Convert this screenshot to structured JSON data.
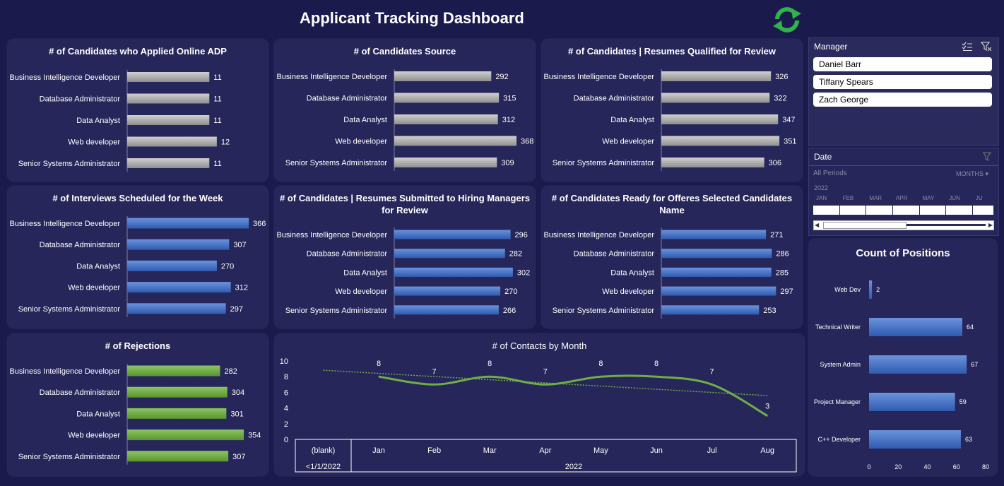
{
  "dashboard": {
    "title": "Applicant Tracking Dashboard"
  },
  "colors": {
    "gray": "#a6a6a6",
    "blue": "#4472c4",
    "green": "#70ad47",
    "panel": "#26265a",
    "bg": "#1b1a4d"
  },
  "manager_slicer": {
    "header": "Manager",
    "items": [
      "Daniel Barr",
      "Tiffany Spears",
      "Zach George"
    ]
  },
  "date_slicer": {
    "header": "Date",
    "period_label": "All Periods",
    "level_label": "MONTHS",
    "year": "2022",
    "months": [
      "JAN",
      "FEB",
      "MAR",
      "APR",
      "MAY",
      "JUN",
      "JU"
    ]
  },
  "chart_data": [
    {
      "id": "applied-online",
      "type": "bar",
      "orientation": "horizontal",
      "color": "gray",
      "title": "# of Candidates who Applied Online ADP",
      "categories": [
        "Business Intelligence Developer",
        "Database Administrator",
        "Data Analyst",
        "Web developer",
        "Senior Systems Administrator"
      ],
      "values": [
        11,
        11,
        11,
        12,
        11
      ],
      "xlim": [
        0,
        14
      ]
    },
    {
      "id": "source",
      "type": "bar",
      "orientation": "horizontal",
      "color": "gray",
      "title": "# of Candidates Source",
      "categories": [
        "Business Intelligence Developer",
        "Database Administrator",
        "Data Analyst",
        "Web developer",
        "Senior Systems Administrator"
      ],
      "values": [
        292,
        315,
        312,
        368,
        309
      ],
      "xlim": [
        0,
        370
      ]
    },
    {
      "id": "qualified",
      "type": "bar",
      "orientation": "horizontal",
      "color": "gray",
      "title": "# of Candidates | Resumes Qualified for Review",
      "categories": [
        "Business Intelligence Developer",
        "Database Administrator",
        "Data Analyst",
        "Web developer",
        "Senior Systems Administrator"
      ],
      "values": [
        326,
        322,
        347,
        351,
        306
      ],
      "xlim": [
        0,
        355
      ]
    },
    {
      "id": "interviews",
      "type": "bar",
      "orientation": "horizontal",
      "color": "blue",
      "title": "# of Interviews Scheduled for the Week",
      "categories": [
        "Business Intelligence Developer",
        "Database Administrator",
        "Data Analyst",
        "Web developer",
        "Senior Systems Administrator"
      ],
      "values": [
        366,
        307,
        270,
        312,
        297
      ],
      "xlim": [
        0,
        368
      ]
    },
    {
      "id": "submitted",
      "type": "bar",
      "orientation": "horizontal",
      "color": "blue",
      "title": "# of Candidates | Resumes Submitted to Hiring Managers for Review",
      "categories": [
        "Business Intelligence Developer",
        "Database Administrator",
        "Data Analyst",
        "Web developer",
        "Senior Systems Administrator"
      ],
      "values": [
        296,
        282,
        302,
        270,
        266
      ],
      "xlim": [
        0,
        304
      ]
    },
    {
      "id": "ready-offers",
      "type": "bar",
      "orientation": "horizontal",
      "color": "blue",
      "title": "# of Candidates Ready for Offeres Selected Candidates Name",
      "categories": [
        "Business Intelligence Developer",
        "Database Administrator",
        "Data Analyst",
        "Web developer",
        "Senior Systems Administrator"
      ],
      "values": [
        271,
        286,
        285,
        297,
        253
      ],
      "xlim": [
        0,
        300
      ]
    },
    {
      "id": "rejections",
      "type": "bar",
      "orientation": "horizontal",
      "color": "green",
      "title": "# of Rejections",
      "categories": [
        "Business Intelligence Developer",
        "Database Administrator",
        "Data Analyst",
        "Web developer",
        "Senior Systems Administrator"
      ],
      "values": [
        282,
        304,
        301,
        354,
        307
      ],
      "xlim": [
        0,
        356
      ]
    },
    {
      "id": "contacts",
      "type": "line",
      "title": "# of Contacts by Month",
      "x": [
        "Jan",
        "Feb",
        "Mar",
        "Apr",
        "May",
        "Jun",
        "Jul",
        "Aug"
      ],
      "values": [
        8,
        7,
        8,
        7,
        8,
        8,
        7,
        3
      ],
      "extra_category": {
        "label": "(blank)",
        "group": "<1/1/2022"
      },
      "group_label": "2022",
      "ylim": [
        0,
        10
      ],
      "yticks": [
        0,
        2,
        4,
        6,
        8,
        10
      ],
      "trendline": true,
      "grid": false
    },
    {
      "id": "positions",
      "type": "bar",
      "orientation": "horizontal",
      "title": "Count of Positions",
      "categories": [
        "Web Dev",
        "Technical Writer",
        "System Admin",
        "Project Manager",
        "C++ Developer"
      ],
      "values": [
        2,
        64,
        67,
        59,
        63
      ],
      "xlim": [
        0,
        80
      ],
      "xticks": [
        0,
        20,
        40,
        60,
        80
      ]
    }
  ]
}
